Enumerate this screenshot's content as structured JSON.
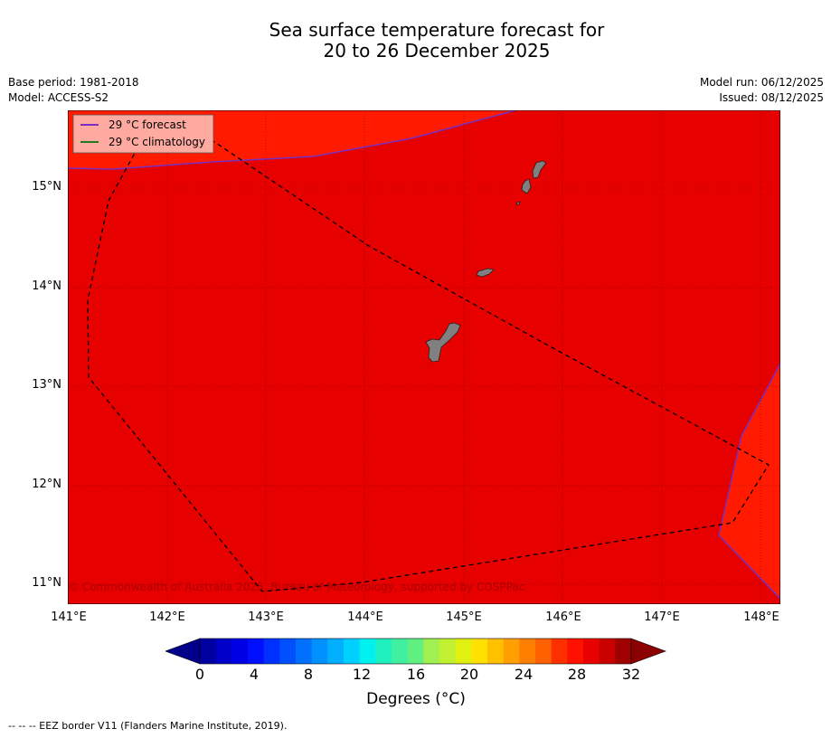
{
  "title_line1": "Sea surface temperature forecast for",
  "title_line2": "20 to 26 December 2025",
  "base_period": "Base period: 1981-2018",
  "model": "Model: ACCESS-S2",
  "model_run": "Model run: 06/12/2025",
  "issued": "Issued: 08/12/2025",
  "map": {
    "lon_labels": [
      "141°E",
      "142°E",
      "143°E",
      "144°E",
      "145°E",
      "146°E",
      "147°E",
      "148°E"
    ],
    "lat_labels": [
      "15°N",
      "14°N",
      "13°N",
      "12°N",
      "11°N"
    ],
    "legend": {
      "forecast_label": "29 °C  forecast",
      "forecast_color": "#7b2fbe",
      "climatology_label": "29 °C  climatology",
      "climatology_color": "#1f7a1f"
    },
    "land_color": "#808080",
    "sst_main_color": "#e60000",
    "sst_warm_color": "#ff1a00",
    "copyright": "© Commonwealth of Australia 2025, Bureau of Meteorology, supported by COSPPac"
  },
  "colorbar": {
    "ticks": [
      "0",
      "4",
      "8",
      "12",
      "16",
      "20",
      "24",
      "28",
      "32"
    ],
    "label": "Degrees (°C)",
    "colors": [
      "#0000a0",
      "#0000c8",
      "#0000e6",
      "#0010ff",
      "#0030ff",
      "#0050ff",
      "#0070ff",
      "#0090ff",
      "#00b0ff",
      "#00d0ff",
      "#00f0f0",
      "#20f0c0",
      "#40f0a0",
      "#60f080",
      "#a0f050",
      "#c0f030",
      "#e0f010",
      "#ffe000",
      "#ffc000",
      "#ffa000",
      "#ff8000",
      "#ff6000",
      "#ff3000",
      "#ff1000",
      "#e80000",
      "#c80000",
      "#a00000"
    ],
    "under_color": "#00008b",
    "over_color": "#8b0000"
  },
  "footnote": "--  --  -- EEZ border V11 (Flanders Marine Institute, 2019)."
}
